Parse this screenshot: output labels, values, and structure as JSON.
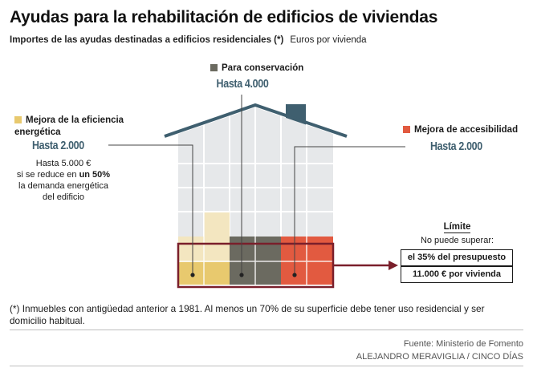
{
  "title": "Ayudas para la rehabilitación de edificios de viviendas",
  "subtitle": "Importes de las ayudas destinadas a edificios residenciales (*)",
  "unit": "Euros por vivienda",
  "conservation": {
    "label": "Para conservación",
    "amount": "Hasta 4.000",
    "color": "#6b6a60"
  },
  "energy": {
    "label": "Mejora de la eficiencia energética",
    "amount": "Hasta 2.000",
    "note_line1": "Hasta 5.000 €",
    "note_line2_pre": "si se reduce en ",
    "note_line2_bold": "un 50%",
    "note_line3": "la demanda energética",
    "note_line4": "del edificio",
    "color": "#e8c96e"
  },
  "accessibility": {
    "label": "Mejora de accesibilidad",
    "amount": "Hasta 2.000",
    "color": "#e25a40"
  },
  "limit": {
    "heading": "Límite",
    "subheading": "No puede superar:",
    "budget": "el 35% del presupuesto",
    "per_home": "11.000 € por vivienda"
  },
  "footnote": "(*) Inmuebles con antigüedad anterior a 1981. Al menos un 70% de su superficie debe tener uso residencial y ser domicilio habitual.",
  "source": "Fuente: Ministerio de Fomento",
  "credit": "ALEJANDRO MERAVIGLIA / CINCO DÍAS"
}
